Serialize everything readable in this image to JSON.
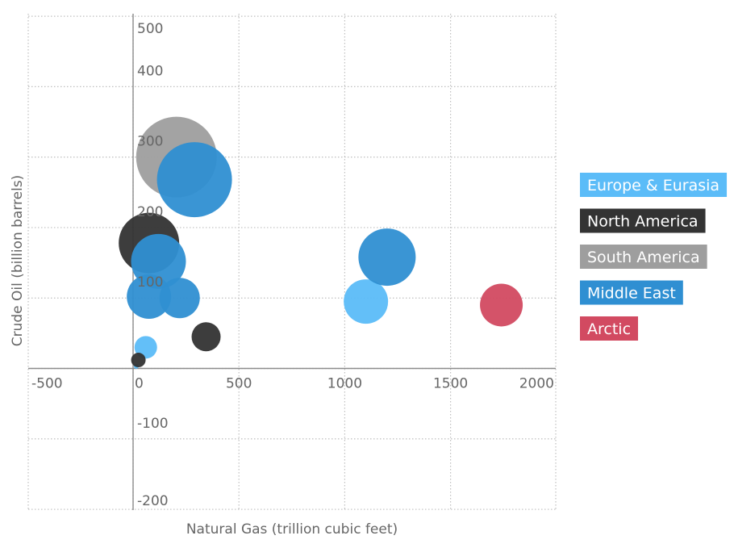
{
  "chart_data": {
    "type": "scatter",
    "subtype": "bubble",
    "title": "",
    "xlabel": "Natural Gas (trillion cubic feet)",
    "ylabel": "Crude Oil (billion barrels)",
    "xlim": [
      -500,
      2000
    ],
    "ylim": [
      -200,
      500
    ],
    "x_tick_labels": [
      "-500",
      "0",
      "500",
      "1000",
      "1500",
      "2000"
    ],
    "y_tick_labels": [
      "500",
      "400",
      "300",
      "200",
      "100",
      "-100",
      "-200"
    ],
    "grid": true,
    "legend_position": "right",
    "series": [
      {
        "name": "Europe & Eurasia",
        "color": "#5bbcf8",
        "points": [
          {
            "x": 1100,
            "y": 95,
            "size": 55
          },
          {
            "x": 60,
            "y": 30,
            "size": 28
          },
          {
            "x": 15,
            "y": 3,
            "size": 6
          }
        ]
      },
      {
        "name": "North America",
        "color": "#333333",
        "points": [
          {
            "x": 75,
            "y": 178,
            "size": 75
          },
          {
            "x": 345,
            "y": 45,
            "size": 36
          },
          {
            "x": 25,
            "y": 12,
            "size": 18
          }
        ]
      },
      {
        "name": "South America",
        "color": "#9e9e9e",
        "points": [
          {
            "x": 205,
            "y": 300,
            "size": 100
          }
        ]
      },
      {
        "name": "Middle East",
        "color": "#2f8fd2",
        "points": [
          {
            "x": 290,
            "y": 268,
            "size": 93
          },
          {
            "x": 120,
            "y": 152,
            "size": 68
          },
          {
            "x": 75,
            "y": 102,
            "size": 55
          },
          {
            "x": 220,
            "y": 100,
            "size": 50
          },
          {
            "x": 1200,
            "y": 158,
            "size": 71
          }
        ]
      },
      {
        "name": "Arctic",
        "color": "#d24a61",
        "points": [
          {
            "x": 1740,
            "y": 90,
            "size": 53
          }
        ]
      }
    ]
  }
}
